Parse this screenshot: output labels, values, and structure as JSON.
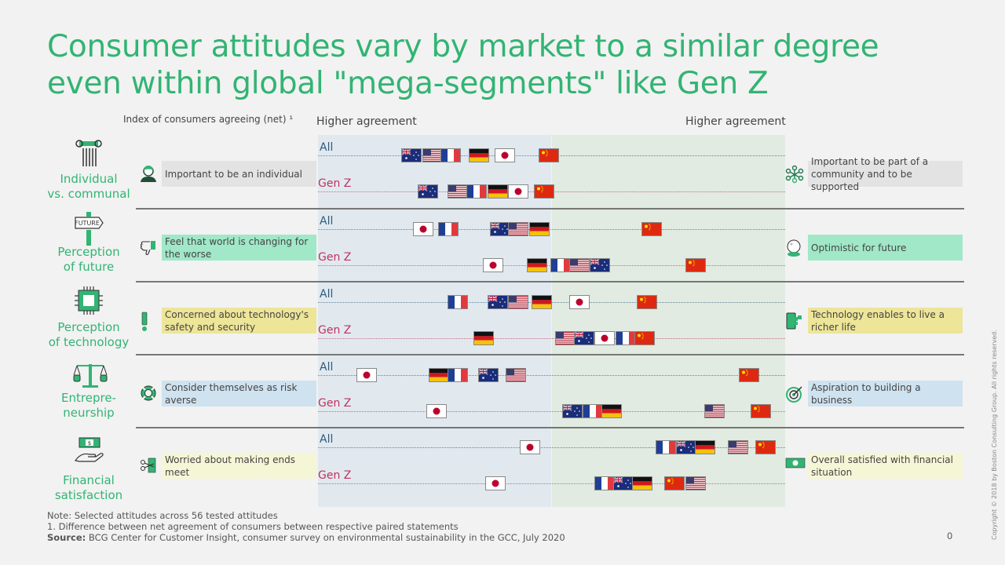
{
  "title_line1": "Consumer attitudes vary by market to a similar degree",
  "title_line2": "even within global \"mega-segments\" like Gen Z",
  "index_label": "Index of consumers agreeing (net) ¹",
  "left_header": "Higher agreement",
  "right_header": "Higher agreement",
  "row_labels": {
    "all": "All",
    "genz": "Gen Z"
  },
  "colors": {
    "title": "#32b473",
    "all": "#2d5b7c",
    "genz": "#c0325f",
    "left_panel": "#e1e9ef",
    "right_panel": "#e1ebe1"
  },
  "sections": [
    {
      "category": [
        "Individual",
        "vs. communal"
      ],
      "category_icon": "column-icon",
      "left": {
        "text": "Important to be an individual",
        "icon": "person-icon",
        "color": "#e3e3e3"
      },
      "right": {
        "text": "Important to be part of a community and to be supported",
        "icon": "network-icon",
        "color": "#e3e3e3"
      },
      "all": {
        "AU": -60,
        "US": -51,
        "FR": -43,
        "DE": -31,
        "JP": -20,
        "CN": -1
      },
      "genz": {
        "AU": -53,
        "US": -40,
        "FR": -32,
        "DE": -23,
        "JP": -14,
        "CN": -3
      }
    },
    {
      "category": [
        "Perception",
        "of future"
      ],
      "category_icon": "future-signpost-icon",
      "left": {
        "text": "Feel that world is changing for the worse",
        "icon": "thumbs-down-icon",
        "color": "#a0e8c8"
      },
      "right": {
        "text": "Optimistic for future",
        "icon": "crystal-ball-icon",
        "color": "#a0e8c8"
      },
      "all": {
        "JP": -55,
        "FR": -44,
        "AU": -22,
        "US": -14,
        "DE": -5,
        "CN": 43
      },
      "genz": {
        "JP": -25,
        "DE": -6,
        "FR": 4,
        "US": 12,
        "AU": 21,
        "CN": 62
      }
    },
    {
      "category": [
        "Perception",
        "of technology"
      ],
      "category_icon": "chip-icon",
      "left": {
        "text": "Concerned  about technology's safety and security",
        "icon": "exclamation-icon",
        "color": "#ede598"
      },
      "right": {
        "text": "Technology enables to live a richer life",
        "icon": "phone-icon",
        "color": "#ede598"
      },
      "all": {
        "FR": -40,
        "AU": -23,
        "US": -14,
        "DE": -4,
        "JP": 12,
        "CN": 41
      },
      "genz": {
        "DE": -29,
        "US": 6,
        "AU": 14,
        "JP": 23,
        "FR": 32,
        "CN": 40
      }
    },
    {
      "category": [
        "Entrepre-",
        "neurship"
      ],
      "category_icon": "scales-icon",
      "left": {
        "text": "Consider themselves as risk averse",
        "icon": "lifebuoy-icon",
        "color": "#cfe2ef"
      },
      "right": {
        "text": "Aspiration to building a business",
        "icon": "target-icon",
        "color": "#cfe2ef"
      },
      "all": {
        "JP": -79,
        "DE": -48,
        "FR": -40,
        "AU": -27,
        "US": -15,
        "CN": 85
      },
      "genz": {
        "JP": -49,
        "AU": 9,
        "FR": 18,
        "DE": 26,
        "US": 70,
        "CN": 90
      }
    },
    {
      "category": [
        "Financial",
        "satisfaction"
      ],
      "category_icon": "money-hand-icon",
      "left": {
        "text": "Worried about making ends meet",
        "icon": "scissors-money-icon",
        "color": "#f5f6d6"
      },
      "right": {
        "text": "Overall satisfied with financial situation",
        "icon": "money-icon",
        "color": "#f5f6d6"
      },
      "all": {
        "JP": -9,
        "FR": 49,
        "AU": 58,
        "DE": 66,
        "US": 80,
        "CN": 92
      },
      "genz": {
        "JP": -24,
        "FR": 23,
        "AU": 31,
        "DE": 39,
        "CN": 53,
        "US": 62
      }
    }
  ],
  "footer": {
    "note": "Note: Selected attitudes across 56 tested attitudes",
    "footnote": "1. Difference between  net agreement of consumers between  respective paired statements",
    "source_label": "Source:",
    "source": " BCG Center for Customer Insight, consumer survey on environmental sustainability in the GCC, July 2020",
    "page": "0",
    "copyright": "Copyright © 2018 by Boston Consulting Group. All rights reserved."
  }
}
